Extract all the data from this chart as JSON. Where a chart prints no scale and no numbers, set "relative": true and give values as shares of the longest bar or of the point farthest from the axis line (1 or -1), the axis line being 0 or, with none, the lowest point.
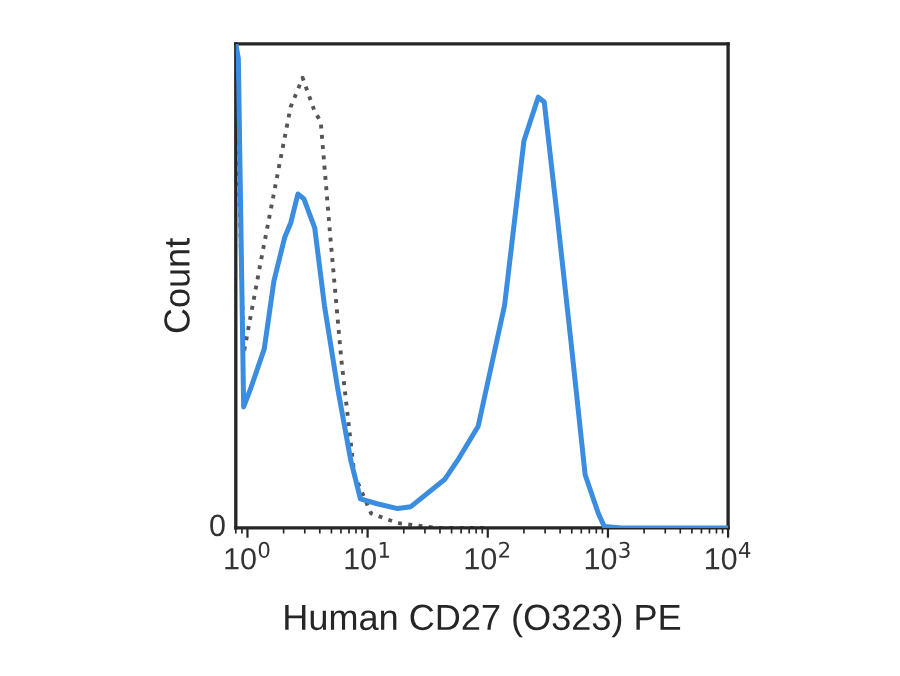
{
  "chart_data": {
    "type": "line",
    "relative": true,
    "xlabel": "Human CD27 (O323) PE",
    "ylabel": "Count",
    "log": "x",
    "grid": false,
    "legend": false,
    "xlim": [
      0.8,
      10000
    ],
    "xticks": [
      {
        "value": 1,
        "label": "10$^{0}$"
      },
      {
        "value": 10,
        "label": "10$^{1}$"
      },
      {
        "value": 100,
        "label": "10$^{2}$"
      },
      {
        "value": 1000,
        "label": "10$^{3}$"
      },
      {
        "value": 10000,
        "label": "10$^{4}$"
      }
    ],
    "annotations": [
      "0"
    ],
    "series": [
      {
        "color": "#3b8de0",
        "line_style": "solid",
        "x": [
          0.8,
          0.84,
          0.93,
          1.07,
          1.38,
          1.66,
          2.04,
          2.29,
          2.63,
          2.95,
          3.63,
          4.37,
          5.62,
          7.24,
          8.71,
          12.0,
          17.8,
          22.9,
          43.7,
          56.2,
          83.2,
          138,
          200,
          263,
          295,
          380,
          490,
          646,
          832,
          933,
          1300,
          10000
        ],
        "values": [
          1.0,
          0.97,
          0.25,
          0.29,
          0.37,
          0.51,
          0.6,
          0.63,
          0.69,
          0.68,
          0.62,
          0.46,
          0.29,
          0.14,
          0.06,
          0.05,
          0.04,
          0.044,
          0.1,
          0.14,
          0.21,
          0.46,
          0.8,
          0.89,
          0.88,
          0.64,
          0.39,
          0.11,
          0.03,
          0.003,
          0,
          0
        ]
      },
      {
        "color": "#555555",
        "line_style": "dotted",
        "x": [
          0.8,
          0.93,
          1.29,
          1.91,
          2.29,
          2.88,
          3.63,
          4.07,
          4.9,
          6.03,
          7.76,
          10.7,
          17.8,
          38,
          100
        ],
        "values": [
          0.97,
          0.36,
          0.55,
          0.77,
          0.87,
          0.93,
          0.86,
          0.84,
          0.6,
          0.35,
          0.11,
          0.03,
          0.01,
          0,
          0
        ]
      }
    ]
  }
}
